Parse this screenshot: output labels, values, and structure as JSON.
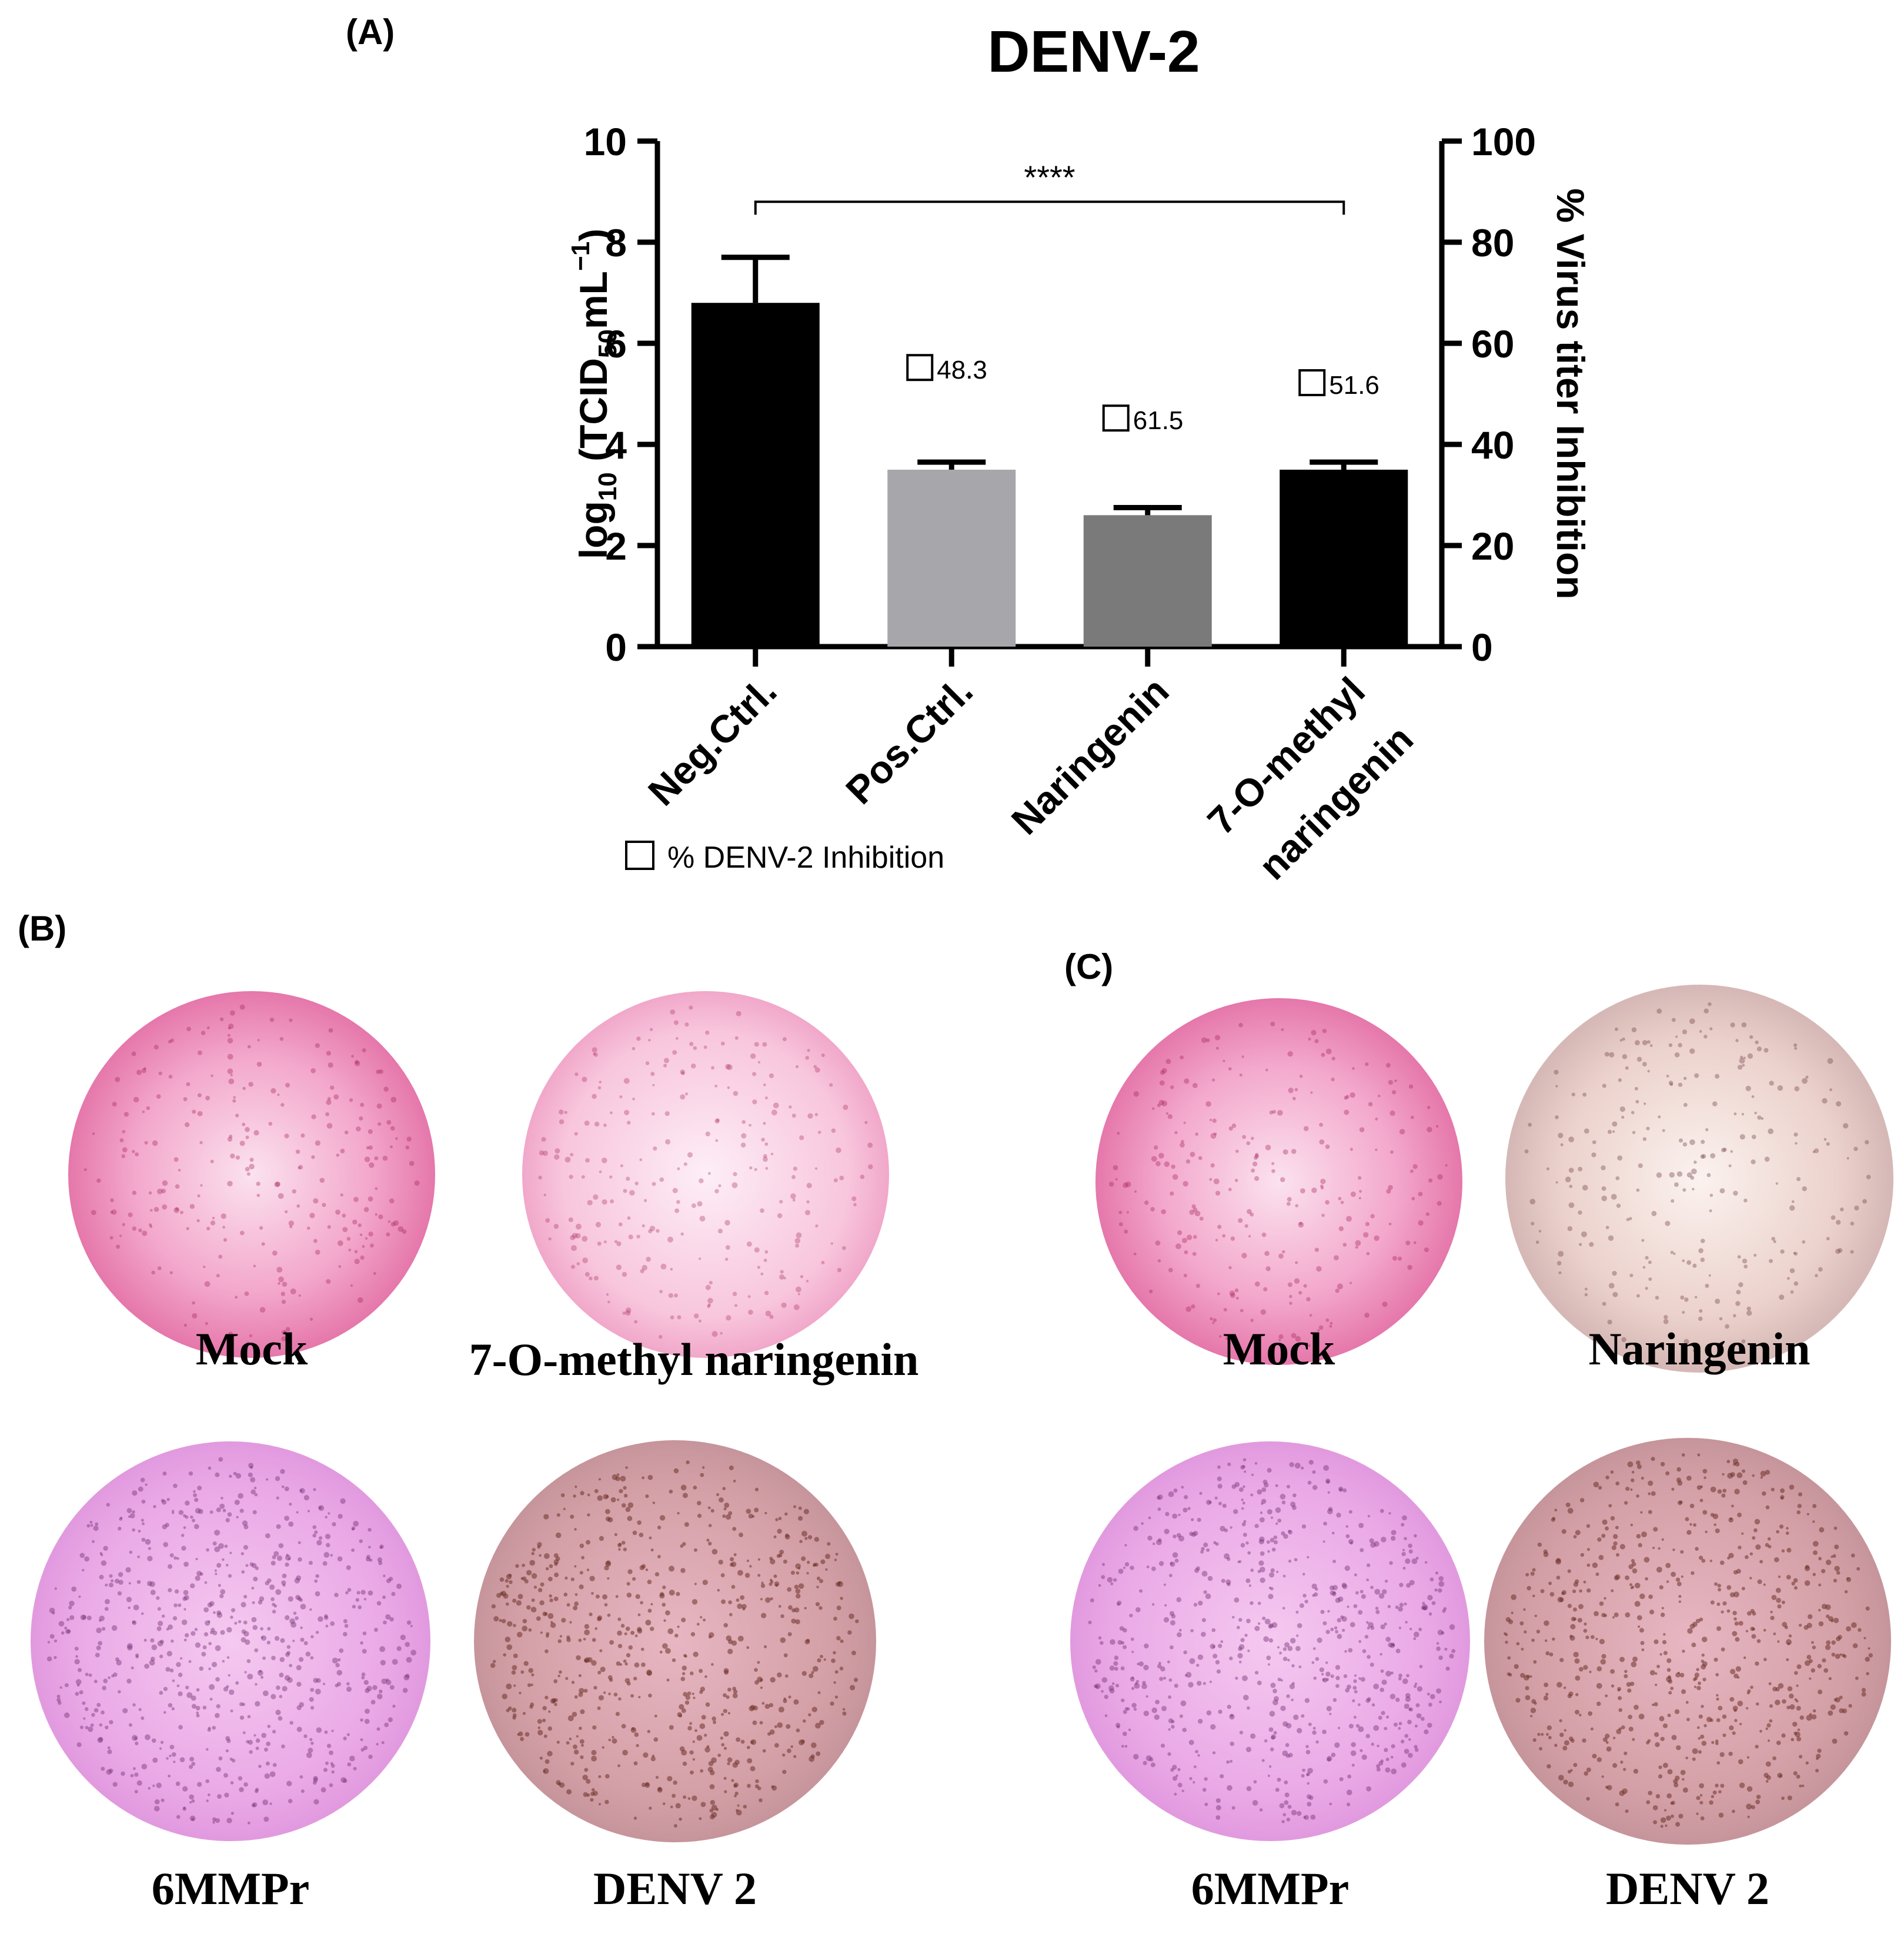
{
  "panels": {
    "a": "(A)",
    "b": "(B)",
    "c": "(C)"
  },
  "chart_data": {
    "type": "bar",
    "title": "DENV-2",
    "categories": [
      "Neg.Ctrl.",
      "Pos.Ctrl.",
      "Naringenin",
      "7-O-methyl naringenin"
    ],
    "category_lines": [
      [
        "Neg.Ctrl."
      ],
      [
        "Pos.Ctrl."
      ],
      [
        "Naringenin"
      ],
      [
        "7-O-methyl",
        "naringenin"
      ]
    ],
    "values": [
      6.8,
      3.5,
      2.6,
      3.5
    ],
    "errors": [
      0.9,
      0.15,
      0.15,
      0.15
    ],
    "bar_colors": [
      "#000000",
      "#a7a6ab",
      "#7a7a7a",
      "#000000"
    ],
    "ylabel_left": {
      "main": "log",
      "sub": "10",
      "paren_open": " (TCID",
      "sub2": "50",
      "unit": "mL",
      "sup": "−1",
      "close": ")"
    },
    "ylabel_right": "% Virus titer Inhibition",
    "ylim_left": [
      0,
      10
    ],
    "yticks_left": [
      0,
      2,
      4,
      6,
      8,
      10
    ],
    "ylim_right": [
      0,
      100
    ],
    "yticks_right": [
      0,
      20,
      40,
      60,
      80,
      100
    ],
    "inhibition": [
      {
        "category_index": 1,
        "value": "48.3",
        "y": 5.3
      },
      {
        "category_index": 2,
        "value": "61.5",
        "y": 4.3
      },
      {
        "category_index": 3,
        "value": "51.6",
        "y": 5.0
      }
    ],
    "significance": {
      "from": 0,
      "to": 3,
      "label": "****",
      "y": 8.8
    },
    "legend": "% DENV-2 Inhibition",
    "grid": false
  },
  "wells": [
    {
      "label": "Mock",
      "style": "mock"
    },
    {
      "label": "7-O-methyl naringenin",
      "style": "pale"
    },
    {
      "label": "6MMPr",
      "style": "violet"
    },
    {
      "label": "DENV 2",
      "style": "infected"
    },
    {
      "label": "Mock",
      "style": "mock"
    },
    {
      "label": "Naringenin",
      "style": "beige"
    },
    {
      "label": "6MMPr",
      "style": "violet"
    },
    {
      "label": "DENV 2",
      "style": "infected"
    }
  ]
}
